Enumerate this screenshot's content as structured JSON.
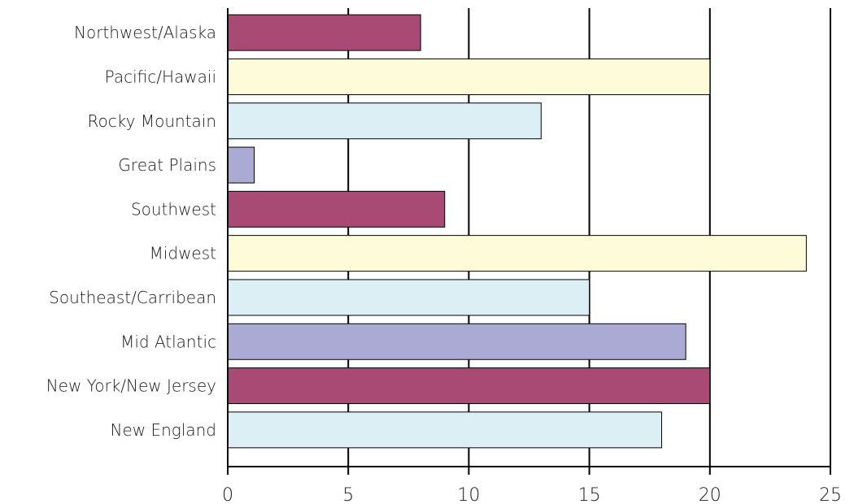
{
  "chart_data": {
    "type": "bar",
    "orientation": "horizontal",
    "title": "",
    "xlabel": "",
    "ylabel": "",
    "categories": [
      "Northwest/Alaska",
      "Pacific/Hawaii",
      "Rocky Mountain",
      "Great Plains",
      "Southwest",
      "Midwest",
      "Southeast/Carribean",
      "Mid Atlantic",
      "New York/New Jersey",
      "New England"
    ],
    "values": [
      8,
      20,
      13,
      1.1,
      9,
      24,
      15,
      19,
      20,
      18
    ],
    "bar_colors": [
      "#a94a74",
      "#fdfbd8",
      "#dbeff5",
      "#aaaad5",
      "#a94a74",
      "#fdfbd8",
      "#dbeff5",
      "#aaaad5",
      "#a94a74",
      "#dbeff5"
    ],
    "xlim": [
      0,
      25
    ],
    "xticks": [
      "0",
      "5",
      "10",
      "15",
      "20",
      "25"
    ],
    "grid": "vertical",
    "legend": "none"
  }
}
